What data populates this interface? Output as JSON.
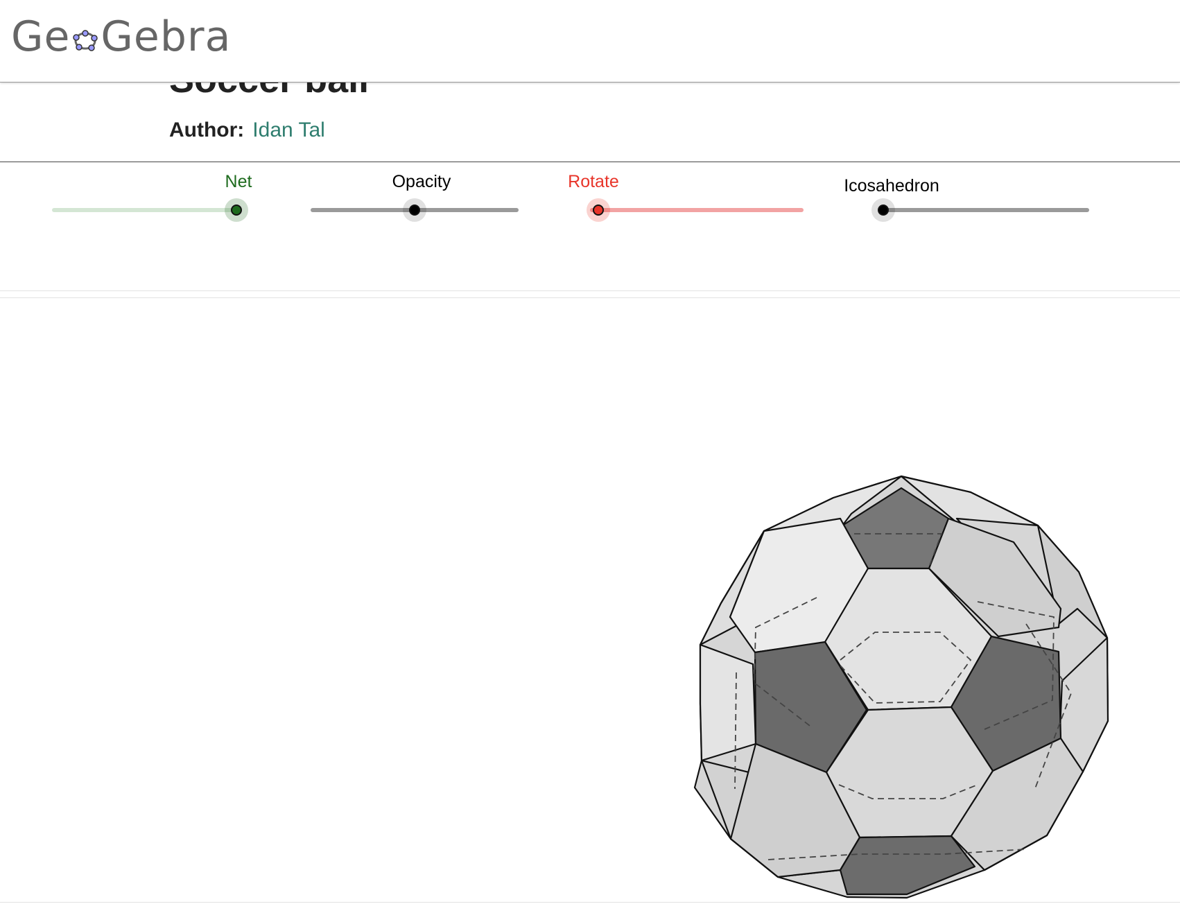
{
  "header": {
    "logo_text": "GeoGebra"
  },
  "page": {
    "title": "Soccer ball",
    "author_label": "Author:",
    "author_name": "Idan Tal"
  },
  "sliders": [
    {
      "label": "Net",
      "value": 1.0,
      "color": "#1e6b1e",
      "track_color": "#cfe4cf"
    },
    {
      "label": "Opacity",
      "value": 0.5,
      "color": "#000000",
      "track_color": "#999999"
    },
    {
      "label": "Rotate",
      "value": 0.0,
      "color": "#e8352a",
      "track_color": "#f4a0a0"
    },
    {
      "label": "Icosahedron",
      "value": 0.0,
      "color": "#000000",
      "track_color": "#999999"
    }
  ],
  "graphics": {
    "object": "truncated-icosahedron"
  }
}
